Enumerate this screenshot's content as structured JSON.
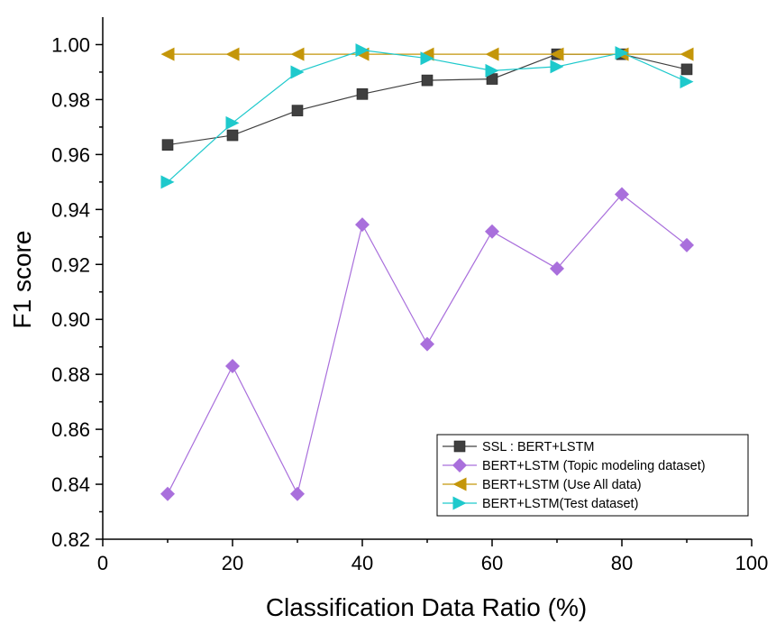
{
  "chart_data": {
    "type": "line",
    "title": "",
    "xlabel": "Classification Data Ratio (%)",
    "ylabel": "F1 score",
    "xlim": [
      0,
      100
    ],
    "ylim": [
      0.82,
      1.01
    ],
    "x_ticks": [
      0,
      20,
      40,
      60,
      80,
      100
    ],
    "x_tick_labels": [
      "0",
      "20",
      "40",
      "60",
      "80",
      "100"
    ],
    "y_ticks": [
      0.82,
      0.84,
      0.86,
      0.88,
      0.9,
      0.92,
      0.94,
      0.96,
      0.98,
      1.0
    ],
    "y_tick_labels": [
      "0.82",
      "0.84",
      "0.86",
      "0.88",
      "0.90",
      "0.92",
      "0.94",
      "0.96",
      "0.98",
      "1.00"
    ],
    "grid": false,
    "legend_position": "bottom-right",
    "x": [
      10,
      20,
      30,
      40,
      50,
      60,
      70,
      80,
      90
    ],
    "series": [
      {
        "name": "SSL : BERT+LSTM",
        "marker": "square",
        "color": "#404040",
        "values": [
          0.9635,
          0.967,
          0.976,
          0.982,
          0.987,
          0.9875,
          0.9965,
          0.9965,
          0.991
        ]
      },
      {
        "name": "BERT+LSTM (Topic modeling dataset)",
        "marker": "diamond",
        "color": "#a96fdc",
        "values": [
          0.8365,
          0.883,
          0.8365,
          0.9345,
          0.891,
          0.932,
          0.9185,
          0.9455,
          0.927
        ]
      },
      {
        "name": "BERT+LSTM (Use All data)",
        "marker": "triangle-left",
        "color": "#c4960a",
        "values": [
          0.9965,
          0.9965,
          0.9965,
          0.9965,
          0.9965,
          0.9965,
          0.9965,
          0.9965,
          0.9965
        ]
      },
      {
        "name": "BERT+LSTM(Test dataset)",
        "marker": "triangle-right",
        "color": "#1ec9cc",
        "values": [
          0.95,
          0.9715,
          0.99,
          0.998,
          0.995,
          0.9905,
          0.992,
          0.997,
          0.9865
        ]
      }
    ]
  }
}
